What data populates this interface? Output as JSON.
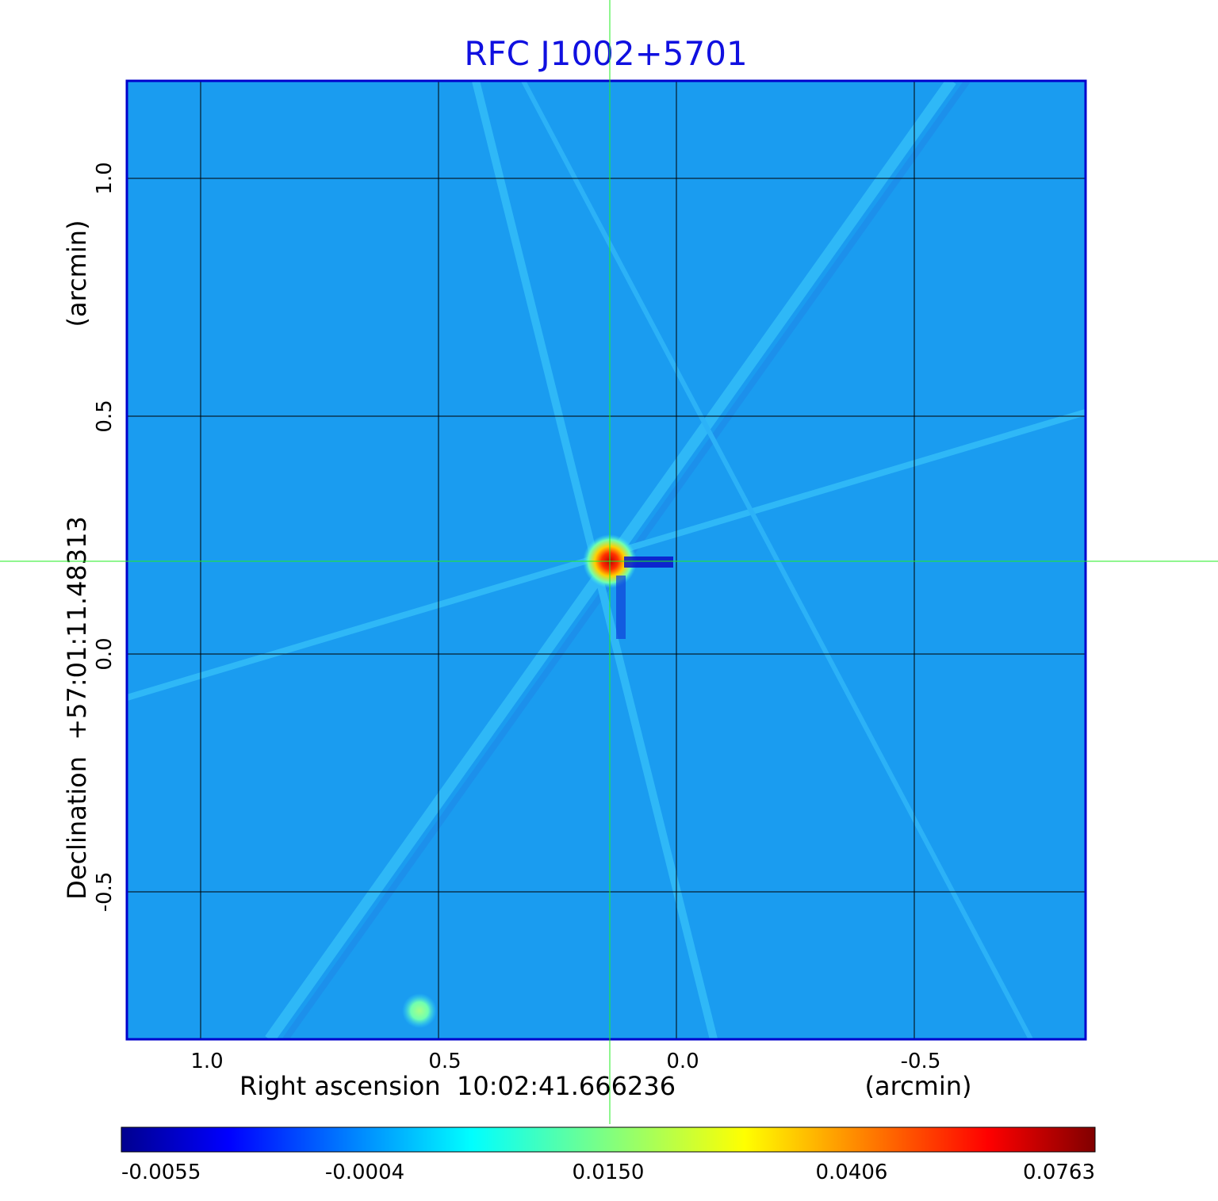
{
  "chart_data": {
    "type": "heatmap",
    "title": "RFC J1002+5701",
    "xlabel": "Right ascension  10:02:41.666236",
    "x_unit_label": "(arcmin)",
    "ylabel": "Declination  +57:01:11.48313",
    "y_unit_label": "(arcmin)",
    "x_ticks": [
      1.0,
      0.5,
      0.0,
      -0.5
    ],
    "x_tick_labels": [
      "1.0",
      "0.5",
      "0.0",
      "-0.5"
    ],
    "y_ticks": [
      1.0,
      0.5,
      0.0,
      -0.5
    ],
    "y_tick_labels": [
      "1.0",
      "0.5",
      "0.0",
      "-0.5"
    ],
    "xlim": [
      1.155,
      -0.86
    ],
    "ylim": [
      -0.81,
      1.205
    ],
    "grid": true,
    "crosshair": {
      "x": 0.14,
      "y": 0.195
    },
    "sources": [
      {
        "x": 0.14,
        "y": 0.195,
        "peak": 0.0763
      },
      {
        "x": 0.54,
        "y": -0.75,
        "peak": 0.015
      }
    ],
    "colorbar": {
      "min": -0.0055,
      "max": 0.0763,
      "tick_labels": [
        "-0.0055",
        "-0.0004",
        "0.0150",
        "0.0406",
        "0.0763"
      ],
      "colormap": "jet"
    }
  },
  "colors": {
    "title": "#1010e0",
    "frame": "#0000cc",
    "background": "#1a9cf0",
    "crosshair": "#22ee22",
    "grid": "#000000"
  }
}
